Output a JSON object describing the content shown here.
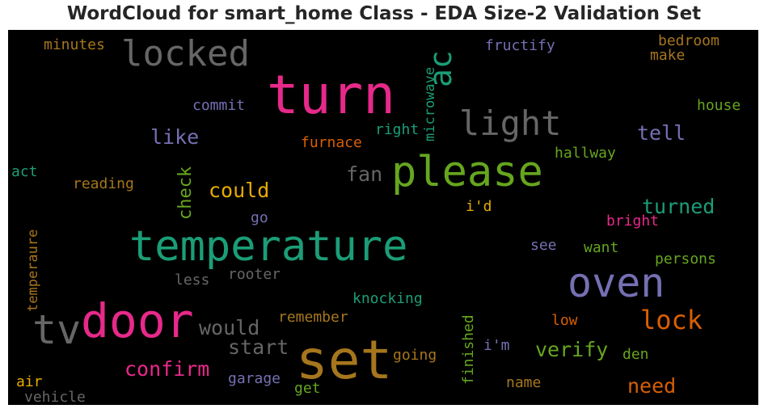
{
  "title": "WordCloud for smart_home Class - EDA Size-2 Validation Set",
  "chart_data": {
    "type": "wordcloud",
    "background": "#000000",
    "words": [
      {
        "text": "temperature",
        "color": "#1b9e77"
      },
      {
        "text": "turn",
        "color": "#e7298a"
      },
      {
        "text": "please",
        "color": "#66a61e"
      },
      {
        "text": "set",
        "color": "#a6761d"
      },
      {
        "text": "door",
        "color": "#e7298a"
      },
      {
        "text": "oven",
        "color": "#7570b3"
      },
      {
        "text": "locked",
        "color": "#666666"
      },
      {
        "text": "light",
        "color": "#666666"
      },
      {
        "text": "tv",
        "color": "#666666"
      },
      {
        "text": "ac",
        "color": "#1b9e77"
      },
      {
        "text": "lock",
        "color": "#d95f02"
      },
      {
        "text": "confirm",
        "color": "#e7298a"
      },
      {
        "text": "would",
        "color": "#666666"
      },
      {
        "text": "start",
        "color": "#666666"
      },
      {
        "text": "could",
        "color": "#e6ab02"
      },
      {
        "text": "turned",
        "color": "#1b9e77"
      },
      {
        "text": "tell",
        "color": "#7570b3"
      },
      {
        "text": "verify",
        "color": "#66a61e"
      },
      {
        "text": "need",
        "color": "#d95f02"
      },
      {
        "text": "fan",
        "color": "#666666"
      },
      {
        "text": "like",
        "color": "#7570b3"
      },
      {
        "text": "check",
        "color": "#66a61e"
      },
      {
        "text": "microwave",
        "color": "#1b9e77"
      },
      {
        "text": "knocking",
        "color": "#1b9e77"
      },
      {
        "text": "bedroom",
        "color": "#a6761d"
      },
      {
        "text": "make",
        "color": "#a6761d"
      },
      {
        "text": "fructify",
        "color": "#7570b3"
      },
      {
        "text": "minutes",
        "color": "#a6761d"
      },
      {
        "text": "commit",
        "color": "#7570b3"
      },
      {
        "text": "right",
        "color": "#1b9e77"
      },
      {
        "text": "house",
        "color": "#66a61e"
      },
      {
        "text": "furnace",
        "color": "#d95f02"
      },
      {
        "text": "hallway",
        "color": "#66a61e"
      },
      {
        "text": "act",
        "color": "#1b9e77"
      },
      {
        "text": "reading",
        "color": "#a6761d"
      },
      {
        "text": "i'd",
        "color": "#e6ab02"
      },
      {
        "text": "go",
        "color": "#7570b3"
      },
      {
        "text": "bright",
        "color": "#e7298a"
      },
      {
        "text": "temperaure",
        "color": "#a6761d"
      },
      {
        "text": "see",
        "color": "#7570b3"
      },
      {
        "text": "want",
        "color": "#66a61e"
      },
      {
        "text": "persons",
        "color": "#66a61e"
      },
      {
        "text": "rooter",
        "color": "#666666"
      },
      {
        "text": "less",
        "color": "#666666"
      },
      {
        "text": "remember",
        "color": "#a6761d"
      },
      {
        "text": "low",
        "color": "#d95f02"
      },
      {
        "text": "finished",
        "color": "#66a61e"
      },
      {
        "text": "i'm",
        "color": "#7570b3"
      },
      {
        "text": "den",
        "color": "#66a61e"
      },
      {
        "text": "going",
        "color": "#a6761d"
      },
      {
        "text": "garage",
        "color": "#7570b3"
      },
      {
        "text": "name",
        "color": "#a6761d"
      },
      {
        "text": "air",
        "color": "#e6ab02"
      },
      {
        "text": "get",
        "color": "#66a61e"
      },
      {
        "text": "vehicle",
        "color": "#666666"
      }
    ]
  }
}
